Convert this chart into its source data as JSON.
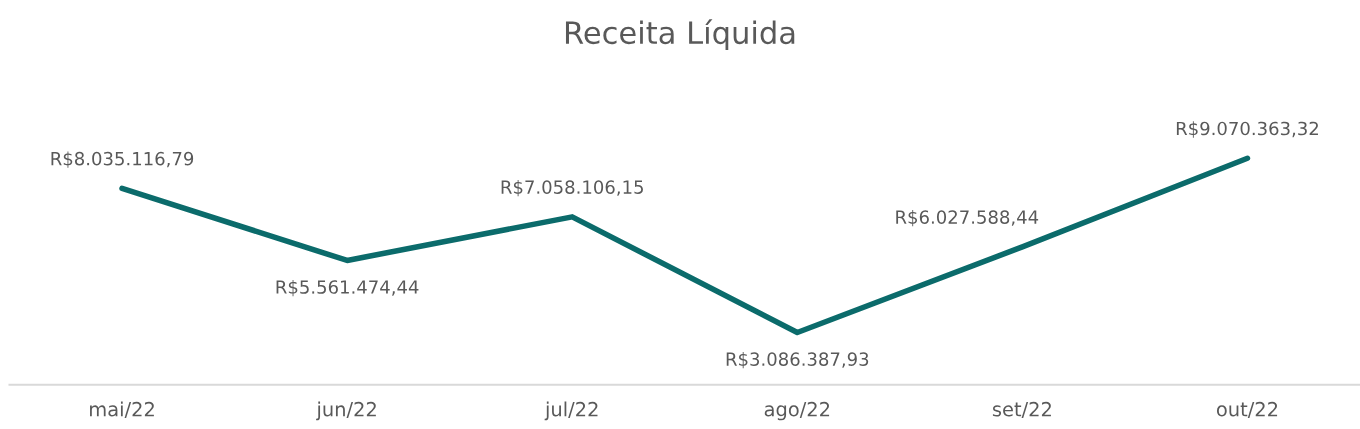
{
  "chart_data": {
    "type": "line",
    "title": "Receita Líquida",
    "categories": [
      "mai/22",
      "jun/22",
      "jul/22",
      "ago/22",
      "set/22",
      "out/22"
    ],
    "series": [
      {
        "color": "#0b6b6b",
        "values": [
          8035116.79,
          5561474.44,
          7058106.15,
          3086387.93,
          6027588.44,
          9070363.32
        ],
        "value_labels": [
          "R$8.035.116,79",
          "R$5.561.474,44",
          "R$7.058.106,15",
          "R$3.086.387,93",
          "R$6.027.588,44",
          "R$9.070.363,32"
        ]
      }
    ],
    "tick_labels": "x",
    "grid": false,
    "legend": false,
    "marker": "none",
    "line_style": "solid"
  }
}
